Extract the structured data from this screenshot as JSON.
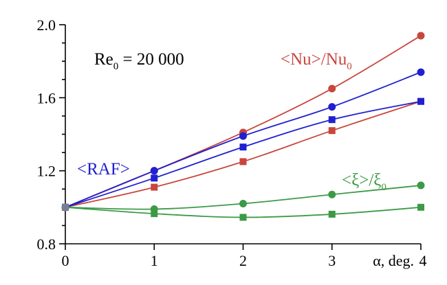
{
  "chart_data": {
    "type": "line",
    "title": "",
    "xlabel": "α, deg.",
    "ylabel": "",
    "xlim": [
      0,
      4
    ],
    "ylim": [
      0.8,
      2.0
    ],
    "x_ticks": [
      "0",
      "1",
      "2",
      "3",
      "4"
    ],
    "y_ticks": [
      "0.8",
      "1.2",
      "1.6",
      "2.0"
    ],
    "grid": false,
    "x": [
      0,
      1,
      2,
      3,
      4
    ],
    "series": [
      {
        "group": "<Nu>/Nu0",
        "marker": "circle",
        "color": "#c8463c",
        "values": [
          1.0,
          1.2,
          1.41,
          1.65,
          1.94
        ]
      },
      {
        "group": "<Nu>/Nu0",
        "marker": "square",
        "color": "#c8463c",
        "values": [
          1.0,
          1.11,
          1.25,
          1.42,
          1.58
        ]
      },
      {
        "group": "<RAF>",
        "marker": "circle",
        "color": "#2020d0",
        "values": [
          1.0,
          1.2,
          1.39,
          1.55,
          1.74
        ]
      },
      {
        "group": "<RAF>",
        "marker": "square",
        "color": "#2020d0",
        "values": [
          1.0,
          1.16,
          1.33,
          1.48,
          1.58
        ]
      },
      {
        "group": "<ξ>/ξ0",
        "marker": "circle",
        "color": "#3c9a46",
        "values": [
          1.0,
          0.99,
          1.02,
          1.07,
          1.12
        ]
      },
      {
        "group": "<ξ>/ξ0",
        "marker": "square",
        "color": "#3c9a46",
        "values": [
          1.0,
          0.965,
          0.945,
          0.962,
          1.0
        ]
      }
    ],
    "annotations": {
      "re": {
        "main": "Re",
        "sub": "0",
        "rest": " = 20 000",
        "color": "#000000"
      },
      "nu": {
        "main": "<Nu>/Nu",
        "sub": "0",
        "color": "#c8463c"
      },
      "raf": {
        "main": "<RAF>",
        "color": "#2020d0"
      },
      "xi": {
        "main": "<ξ>/ξ",
        "sub": "0",
        "color": "#3c9a46"
      }
    }
  }
}
